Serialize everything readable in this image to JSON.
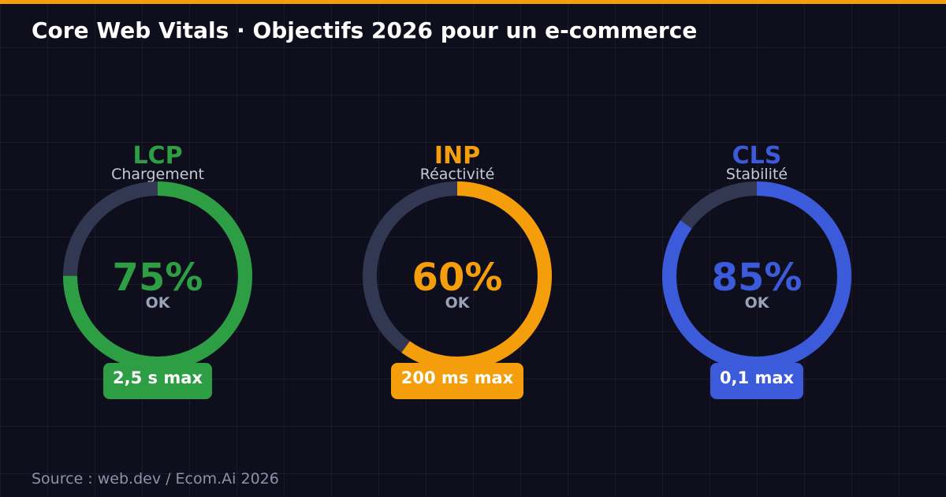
{
  "title": "Core Web Vitals · Objectifs 2026 pour un e-commerce",
  "source": "Source : web.dev / Ecom.Ai 2026",
  "colors": {
    "background": "#0e0e1c",
    "accent_bar": "#f59e0b",
    "track": "#333852",
    "lcp": "#2e9e44",
    "inp": "#f59e0b",
    "cls": "#3b5bdb"
  },
  "chart_data": {
    "type": "gauge",
    "title": "Core Web Vitals · Objectifs 2026 pour un e-commerce",
    "gauges": [
      {
        "name": "LCP",
        "description": "Chargement",
        "value": 75,
        "value_label": "75%",
        "status": "OK",
        "threshold": "2,5 s max",
        "color": "#2e9e44"
      },
      {
        "name": "INP",
        "description": "Réactivité",
        "value": 60,
        "value_label": "60%",
        "status": "OK",
        "threshold": "200 ms max",
        "color": "#f59e0b"
      },
      {
        "name": "CLS",
        "description": "Stabilité",
        "value": 85,
        "value_label": "85%",
        "status": "OK",
        "threshold": "0,1 max",
        "color": "#3b5bdb"
      }
    ]
  }
}
